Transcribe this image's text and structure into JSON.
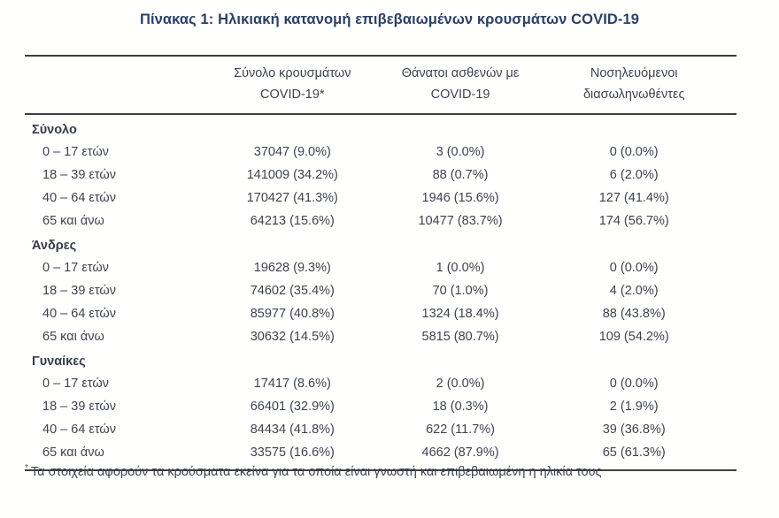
{
  "title": "Πίνακας 1: Ηλικιακή κατανομή επιβεβαιωμένων κρουσμάτων COVID-19",
  "table": {
    "columns": [
      {
        "line1": "Σύνολο κρουσμάτων",
        "line2": "COVID-19*"
      },
      {
        "line1": "Θάνατοι ασθενών με",
        "line2": "COVID-19"
      },
      {
        "line1": "Νοσηλευόμενοι",
        "line2": "διασωληνωθέντες"
      }
    ],
    "sections": [
      {
        "label": "Σύνολο",
        "rows": [
          {
            "age": "0 – 17 ετών",
            "cases": "37047 (9.0%)",
            "deaths": "3 (0.0%)",
            "intubated": "0 (0.0%)"
          },
          {
            "age": "18 – 39 ετών",
            "cases": "141009 (34.2%)",
            "deaths": "88 (0.7%)",
            "intubated": "6 (2.0%)"
          },
          {
            "age": "40 – 64 ετών",
            "cases": "170427 (41.3%)",
            "deaths": "1946 (15.6%)",
            "intubated": "127 (41.4%)"
          },
          {
            "age": "65 και άνω",
            "cases": "64213 (15.6%)",
            "deaths": "10477 (83.7%)",
            "intubated": "174 (56.7%)"
          }
        ]
      },
      {
        "label": "Άνδρες",
        "rows": [
          {
            "age": "0 – 17 ετών",
            "cases": "19628 (9.3%)",
            "deaths": "1 (0.0%)",
            "intubated": "0 (0.0%)"
          },
          {
            "age": "18 – 39 ετών",
            "cases": "74602 (35.4%)",
            "deaths": "70 (1.0%)",
            "intubated": "4 (2.0%)"
          },
          {
            "age": "40 – 64 ετών",
            "cases": "85977 (40.8%)",
            "deaths": "1324 (18.4%)",
            "intubated": "88 (43.8%)"
          },
          {
            "age": "65 και άνω",
            "cases": "30632 (14.5%)",
            "deaths": "5815 (80.7%)",
            "intubated": "109 (54.2%)"
          }
        ]
      },
      {
        "label": "Γυναίκες",
        "rows": [
          {
            "age": "0 – 17 ετών",
            "cases": "17417 (8.6%)",
            "deaths": "2 (0.0%)",
            "intubated": "0 (0.0%)"
          },
          {
            "age": "18 – 39 ετών",
            "cases": "66401 (32.9%)",
            "deaths": "18 (0.3%)",
            "intubated": "2 (1.9%)"
          },
          {
            "age": "40 – 64 ετών",
            "cases": "84434 (41.8%)",
            "deaths": "622 (11.7%)",
            "intubated": "39 (36.8%)"
          },
          {
            "age": "65 και άνω",
            "cases": "33575 (16.6%)",
            "deaths": "4662 (87.9%)",
            "intubated": "65 (61.3%)"
          }
        ]
      }
    ],
    "footnote_marker": "*",
    "footnote": "Τα στοιχεία αφορούν τα κρούσματα εκείνα για τα οποία είναι γνωστή και επιβεβαιωμένη η ηλικία τους"
  },
  "colors": {
    "title": "#2b4168",
    "text": "#3d434e",
    "border": "#3e3e3e",
    "background": "#fffffe"
  }
}
